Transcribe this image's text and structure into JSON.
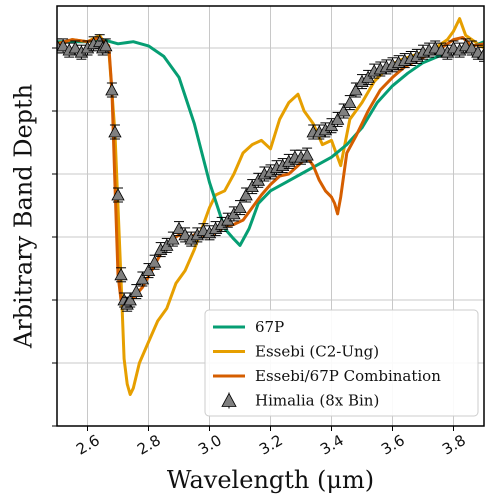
{
  "chart_data": {
    "type": "line",
    "xlabel": "Wavelength (μm)",
    "ylabel": "Arbitrary Band Depth",
    "xlim": [
      2.5,
      3.9
    ],
    "ylim": [
      0.0,
      1.0
    ],
    "x_ticks": [
      2.6,
      2.8,
      3.0,
      3.2,
      3.4,
      3.6,
      3.8
    ],
    "x_tick_labels": [
      "2.6",
      "2.8",
      "3.0",
      "3.2",
      "3.4",
      "3.6",
      "3.8"
    ],
    "y_ticks": [
      0.0,
      0.15,
      0.3,
      0.45,
      0.6,
      0.75,
      0.9
    ],
    "y_tick_labels_visible": false,
    "grid": true,
    "legend_position": "lower-right",
    "series": [
      {
        "name": "67P",
        "color": "#069e73",
        "style": "line",
        "points": [
          [
            2.5,
            0.915
          ],
          [
            2.6,
            0.915
          ],
          [
            2.65,
            0.92
          ],
          [
            2.7,
            0.91
          ],
          [
            2.75,
            0.915
          ],
          [
            2.8,
            0.905
          ],
          [
            2.85,
            0.88
          ],
          [
            2.9,
            0.83
          ],
          [
            2.95,
            0.72
          ],
          [
            3.0,
            0.58
          ],
          [
            3.05,
            0.47
          ],
          [
            3.08,
            0.445
          ],
          [
            3.1,
            0.43
          ],
          [
            3.13,
            0.47
          ],
          [
            3.16,
            0.53
          ],
          [
            3.2,
            0.56
          ],
          [
            3.25,
            0.58
          ],
          [
            3.3,
            0.6
          ],
          [
            3.35,
            0.62
          ],
          [
            3.4,
            0.64
          ],
          [
            3.45,
            0.67
          ],
          [
            3.5,
            0.71
          ],
          [
            3.55,
            0.77
          ],
          [
            3.6,
            0.81
          ],
          [
            3.65,
            0.84
          ],
          [
            3.7,
            0.865
          ],
          [
            3.75,
            0.88
          ],
          [
            3.8,
            0.895
          ],
          [
            3.85,
            0.9
          ],
          [
            3.9,
            0.915
          ]
        ]
      },
      {
        "name": "Essebi (C2-Ung)",
        "color": "#e69f00",
        "style": "line",
        "points": [
          [
            2.5,
            0.905
          ],
          [
            2.55,
            0.92
          ],
          [
            2.6,
            0.915
          ],
          [
            2.64,
            0.93
          ],
          [
            2.67,
            0.895
          ],
          [
            2.69,
            0.7
          ],
          [
            2.71,
            0.35
          ],
          [
            2.72,
            0.16
          ],
          [
            2.73,
            0.1
          ],
          [
            2.74,
            0.075
          ],
          [
            2.75,
            0.09
          ],
          [
            2.77,
            0.15
          ],
          [
            2.8,
            0.2
          ],
          [
            2.83,
            0.25
          ],
          [
            2.86,
            0.28
          ],
          [
            2.89,
            0.34
          ],
          [
            2.92,
            0.37
          ],
          [
            2.95,
            0.42
          ],
          [
            2.98,
            0.48
          ],
          [
            3.0,
            0.52
          ],
          [
            3.02,
            0.55
          ],
          [
            3.05,
            0.56
          ],
          [
            3.08,
            0.6
          ],
          [
            3.11,
            0.65
          ],
          [
            3.14,
            0.67
          ],
          [
            3.17,
            0.68
          ],
          [
            3.2,
            0.66
          ],
          [
            3.23,
            0.73
          ],
          [
            3.26,
            0.77
          ],
          [
            3.29,
            0.79
          ],
          [
            3.31,
            0.75
          ],
          [
            3.34,
            0.72
          ],
          [
            3.37,
            0.67
          ],
          [
            3.4,
            0.68
          ],
          [
            3.43,
            0.62
          ],
          [
            3.46,
            0.73
          ],
          [
            3.5,
            0.77
          ],
          [
            3.54,
            0.82
          ],
          [
            3.58,
            0.85
          ],
          [
            3.62,
            0.87
          ],
          [
            3.66,
            0.88
          ],
          [
            3.7,
            0.89
          ],
          [
            3.74,
            0.9
          ],
          [
            3.78,
            0.92
          ],
          [
            3.8,
            0.94
          ],
          [
            3.82,
            0.97
          ],
          [
            3.84,
            0.93
          ],
          [
            3.88,
            0.91
          ],
          [
            3.9,
            0.9
          ]
        ]
      },
      {
        "name": "Essebi/67P Combination",
        "color": "#d55e00",
        "style": "line",
        "points": [
          [
            2.5,
            0.91
          ],
          [
            2.55,
            0.92
          ],
          [
            2.6,
            0.915
          ],
          [
            2.64,
            0.925
          ],
          [
            2.67,
            0.905
          ],
          [
            2.68,
            0.8
          ],
          [
            2.69,
            0.58
          ],
          [
            2.7,
            0.36
          ],
          [
            2.71,
            0.3
          ],
          [
            2.72,
            0.285
          ],
          [
            2.73,
            0.29
          ],
          [
            2.75,
            0.305
          ],
          [
            2.78,
            0.33
          ],
          [
            2.81,
            0.37
          ],
          [
            2.84,
            0.41
          ],
          [
            2.87,
            0.44
          ],
          [
            2.9,
            0.455
          ],
          [
            2.93,
            0.445
          ],
          [
            2.96,
            0.46
          ],
          [
            2.99,
            0.45
          ],
          [
            3.02,
            0.46
          ],
          [
            3.05,
            0.475
          ],
          [
            3.08,
            0.48
          ],
          [
            3.11,
            0.49
          ],
          [
            3.14,
            0.52
          ],
          [
            3.17,
            0.55
          ],
          [
            3.2,
            0.575
          ],
          [
            3.23,
            0.595
          ],
          [
            3.26,
            0.6
          ],
          [
            3.29,
            0.62
          ],
          [
            3.32,
            0.64
          ],
          [
            3.34,
            0.62
          ],
          [
            3.36,
            0.585
          ],
          [
            3.38,
            0.56
          ],
          [
            3.4,
            0.545
          ],
          [
            3.41,
            0.53
          ],
          [
            3.42,
            0.505
          ],
          [
            3.43,
            0.545
          ],
          [
            3.45,
            0.65
          ],
          [
            3.48,
            0.69
          ],
          [
            3.52,
            0.75
          ],
          [
            3.56,
            0.8
          ],
          [
            3.6,
            0.83
          ],
          [
            3.64,
            0.855
          ],
          [
            3.68,
            0.87
          ],
          [
            3.72,
            0.885
          ],
          [
            3.76,
            0.9
          ],
          [
            3.8,
            0.92
          ],
          [
            3.83,
            0.925
          ],
          [
            3.86,
            0.905
          ],
          [
            3.9,
            0.91
          ]
        ]
      },
      {
        "name": "Himalia (8x Bin)",
        "color": "#808080",
        "style": "markers",
        "marker": "triangle",
        "points": [
          [
            2.5,
            0.905
          ],
          [
            2.52,
            0.905
          ],
          [
            2.54,
            0.895
          ],
          [
            2.56,
            0.9
          ],
          [
            2.58,
            0.89
          ],
          [
            2.6,
            0.9
          ],
          [
            2.62,
            0.91
          ],
          [
            2.64,
            0.915
          ],
          [
            2.65,
            0.9
          ],
          [
            2.66,
            0.905
          ],
          [
            2.68,
            0.8
          ],
          [
            2.69,
            0.7
          ],
          [
            2.7,
            0.55
          ],
          [
            2.71,
            0.36
          ],
          [
            2.72,
            0.3
          ],
          [
            2.73,
            0.29
          ],
          [
            2.74,
            0.3
          ],
          [
            2.76,
            0.32
          ],
          [
            2.78,
            0.35
          ],
          [
            2.8,
            0.37
          ],
          [
            2.82,
            0.39
          ],
          [
            2.84,
            0.42
          ],
          [
            2.86,
            0.43
          ],
          [
            2.88,
            0.445
          ],
          [
            2.9,
            0.47
          ],
          [
            2.92,
            0.455
          ],
          [
            2.94,
            0.445
          ],
          [
            2.96,
            0.455
          ],
          [
            2.98,
            0.465
          ],
          [
            3.0,
            0.46
          ],
          [
            3.02,
            0.47
          ],
          [
            3.04,
            0.48
          ],
          [
            3.06,
            0.49
          ],
          [
            3.08,
            0.505
          ],
          [
            3.1,
            0.52
          ],
          [
            3.12,
            0.55
          ],
          [
            3.14,
            0.57
          ],
          [
            3.16,
            0.585
          ],
          [
            3.18,
            0.6
          ],
          [
            3.2,
            0.605
          ],
          [
            3.22,
            0.615
          ],
          [
            3.24,
            0.62
          ],
          [
            3.26,
            0.63
          ],
          [
            3.28,
            0.64
          ],
          [
            3.3,
            0.64
          ],
          [
            3.32,
            0.645
          ],
          [
            3.34,
            0.7
          ],
          [
            3.36,
            0.7
          ],
          [
            3.38,
            0.705
          ],
          [
            3.4,
            0.715
          ],
          [
            3.42,
            0.73
          ],
          [
            3.44,
            0.75
          ],
          [
            3.46,
            0.77
          ],
          [
            3.48,
            0.8
          ],
          [
            3.5,
            0.82
          ],
          [
            3.52,
            0.83
          ],
          [
            3.54,
            0.845
          ],
          [
            3.56,
            0.85
          ],
          [
            3.58,
            0.855
          ],
          [
            3.6,
            0.86
          ],
          [
            3.62,
            0.865
          ],
          [
            3.64,
            0.87
          ],
          [
            3.66,
            0.875
          ],
          [
            3.68,
            0.88
          ],
          [
            3.7,
            0.89
          ],
          [
            3.72,
            0.895
          ],
          [
            3.74,
            0.9
          ],
          [
            3.76,
            0.895
          ],
          [
            3.78,
            0.89
          ],
          [
            3.8,
            0.9
          ],
          [
            3.82,
            0.895
          ],
          [
            3.84,
            0.905
          ],
          [
            3.86,
            0.9
          ],
          [
            3.88,
            0.89
          ],
          [
            3.9,
            0.885
          ]
        ]
      }
    ]
  }
}
